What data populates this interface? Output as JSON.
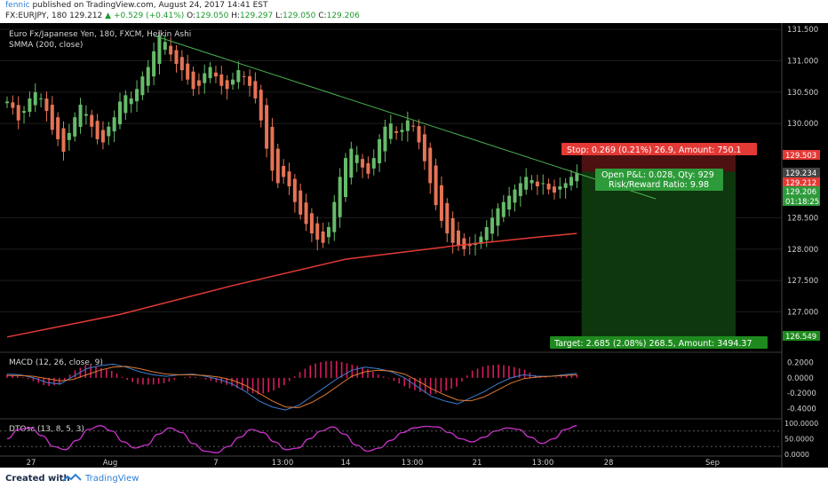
{
  "header": {
    "author": "fennic",
    "published_text": "published on TradingView.com, August 24, 2017 14:41 EST",
    "symbol": "FX:EURJPY, 180",
    "last": "129.212",
    "change": "+0.529 (+0.41%)",
    "o_label": "O:",
    "o_value": "129.050",
    "h_label": "H:",
    "h_value": "129.297",
    "l_label": "L:",
    "l_value": "129.050",
    "c_label": "C:",
    "c_value": "129.206"
  },
  "legend": {
    "title": "Euro Fx/Japanese Yen, 180, FXCM, Heikin Ashi",
    "smma": "SMMA (200, close)",
    "macd": "MACD (12, 26, close, 9)",
    "dtosc": "DTOsc (13, 8, 5, 3)"
  },
  "position": {
    "stop_label": "Stop: 0.269 (0.21%) 26.9, Amount: 750.1",
    "pnl_label": "Open P&L: 0.028, Qty: 929",
    "rr_label": "Risk/Reward Ratio: 9.98",
    "target_label": "Target: 2.685 (2.08%) 268.5, Amount: 3494.37"
  },
  "price_tags": {
    "stop": "129.503",
    "top": "129.234",
    "last": "129.212",
    "close": "129.206",
    "countdown": "01:18:25",
    "target": "126.549"
  },
  "colors": {
    "up": "#66bb6a",
    "down": "#e57355",
    "smma": "#e53935",
    "trend": "#4caf50",
    "stop": "#e53935",
    "target": "#1e8a1e",
    "macd_line": "#3f7fd0",
    "signal_line": "#e07a30",
    "hist": "#d81b60",
    "dtosc": "#cc33cc"
  },
  "footer": {
    "created": "Created with",
    "brand": "TradingView"
  },
  "chart_data": [
    {
      "type": "candlestick",
      "title": "Euro Fx/Japanese Yen, 180, FXCM, Heikin Ashi",
      "ylim": [
        126.4,
        131.6
      ],
      "yticks": [
        "131.500",
        "131.000",
        "130.500",
        "130.000",
        "128.500",
        "128.000",
        "127.500",
        "127.000"
      ],
      "x_labels": [
        "27",
        "Aug",
        "7",
        "13:00",
        "14",
        "13:00",
        "21",
        "13:00",
        "28",
        "Sep"
      ],
      "close": [
        130.35,
        130.25,
        130.05,
        130.2,
        130.4,
        130.5,
        130.4,
        130.2,
        129.9,
        129.75,
        129.55,
        129.85,
        130.1,
        130.3,
        130.15,
        129.95,
        129.75,
        129.7,
        129.95,
        130.1,
        130.35,
        130.45,
        130.4,
        130.55,
        130.75,
        130.9,
        131.15,
        131.4,
        131.3,
        131.1,
        130.95,
        130.85,
        130.7,
        130.55,
        130.6,
        130.8,
        130.9,
        130.75,
        130.6,
        130.55,
        130.7,
        130.85,
        130.75,
        130.6,
        130.4,
        130.05,
        129.6,
        129.25,
        129.05,
        129.15,
        129.0,
        128.75,
        128.55,
        128.4,
        128.25,
        128.15,
        128.1,
        128.35,
        128.75,
        129.15,
        129.45,
        129.6,
        129.5,
        129.3,
        129.2,
        129.45,
        129.75,
        129.95,
        130.0,
        129.85,
        129.9,
        130.05,
        129.95,
        129.7,
        129.4,
        129.05,
        128.7,
        128.45,
        128.25,
        128.1,
        128.05,
        128.0,
        128.05,
        128.1,
        128.2,
        128.35,
        128.5,
        128.65,
        128.75,
        128.85,
        128.95,
        129.05,
        129.15,
        129.1,
        129.0,
        129.05,
        128.95,
        128.9,
        129.0,
        129.05,
        129.15,
        129.21
      ],
      "smma": [
        {
          "x": 0,
          "y": 126.6
        },
        {
          "x": 20,
          "y": 126.96
        },
        {
          "x": 40,
          "y": 127.42
        },
        {
          "x": 60,
          "y": 127.84
        },
        {
          "x": 80,
          "y": 128.06
        },
        {
          "x": 95,
          "y": 128.2
        },
        {
          "x": 101,
          "y": 128.25
        }
      ],
      "trendline": [
        {
          "x": 26,
          "y": 131.4
        },
        {
          "x": 115,
          "y": 128.8
        }
      ],
      "position": {
        "entry": 129.234,
        "stop": 129.503,
        "target": 126.549
      }
    },
    {
      "type": "line",
      "title": "MACD (12, 26, close, 9)",
      "ylim": [
        -0.5,
        0.3
      ],
      "yticks": [
        "0.2000",
        "0.0000",
        "-0.2000",
        "-0.4000"
      ],
      "series": [
        {
          "name": "MACD",
          "values": [
            0.05,
            0.04,
            0.0,
            -0.06,
            -0.08,
            0.02,
            0.12,
            0.16,
            0.18,
            0.14,
            0.08,
            0.04,
            0.02,
            0.04,
            0.05,
            0.02,
            -0.02,
            -0.08,
            -0.18,
            -0.3,
            -0.38,
            -0.42,
            -0.36,
            -0.24,
            -0.12,
            0.0,
            0.1,
            0.14,
            0.12,
            0.08,
            0.0,
            -0.12,
            -0.24,
            -0.3,
            -0.34,
            -0.26,
            -0.18,
            -0.08,
            0.0,
            0.04,
            0.02,
            0.02,
            0.04,
            0.06
          ]
        },
        {
          "name": "Signal",
          "values": [
            0.03,
            0.03,
            0.02,
            -0.01,
            -0.04,
            -0.02,
            0.04,
            0.1,
            0.14,
            0.15,
            0.12,
            0.08,
            0.05,
            0.04,
            0.04,
            0.03,
            0.01,
            -0.03,
            -0.1,
            -0.2,
            -0.3,
            -0.38,
            -0.39,
            -0.32,
            -0.22,
            -0.1,
            0.02,
            0.08,
            0.1,
            0.09,
            0.05,
            -0.04,
            -0.14,
            -0.22,
            -0.29,
            -0.3,
            -0.25,
            -0.16,
            -0.07,
            -0.01,
            0.01,
            0.02,
            0.03,
            0.04
          ]
        }
      ]
    },
    {
      "type": "line",
      "title": "DTOsc (13, 8, 5, 3)",
      "ylim": [
        0,
        100
      ],
      "yticks": [
        "100.0000",
        "50.0000",
        "0.0000"
      ],
      "series": [
        {
          "name": "DTOsc",
          "values": [
            50,
            80,
            85,
            60,
            25,
            15,
            45,
            80,
            92,
            75,
            40,
            20,
            30,
            65,
            85,
            70,
            35,
            10,
            5,
            25,
            55,
            80,
            70,
            40,
            15,
            20,
            50,
            75,
            88,
            65,
            30,
            10,
            20,
            45,
            70,
            85,
            90,
            88,
            70,
            50,
            40,
            55,
            75,
            85,
            80,
            55,
            35,
            50,
            80,
            92
          ]
        }
      ]
    }
  ]
}
